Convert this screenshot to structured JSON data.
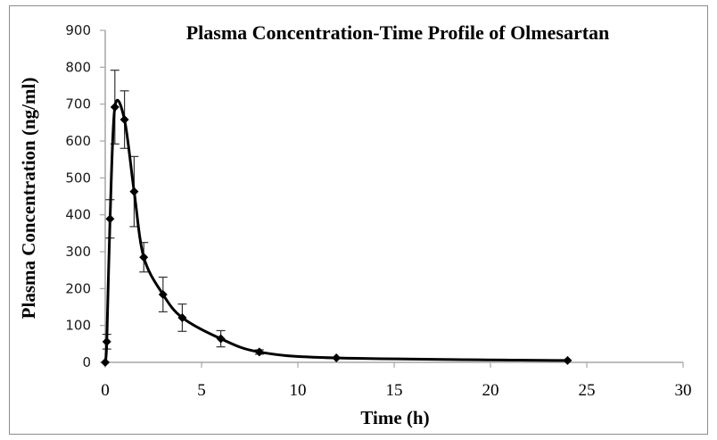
{
  "chart_data": {
    "type": "line",
    "title": "Plasma Concentration-Time Profile of Olmesartan",
    "xlabel": "Time (h)",
    "ylabel": "Plasma Concentration (ng/ml)",
    "xlim": [
      0,
      30
    ],
    "ylim": [
      0,
      900
    ],
    "xticks": [
      0,
      5,
      10,
      15,
      20,
      25,
      30
    ],
    "yticks": [
      0,
      100,
      200,
      300,
      400,
      500,
      600,
      700,
      800,
      900
    ],
    "grid": false,
    "legend": "none",
    "series": [
      {
        "name": "Olmesartan",
        "color": "#000000",
        "marker": "diamond",
        "smooth": true,
        "x": [
          0,
          0.08,
          0.25,
          0.5,
          1,
          1.5,
          2,
          3,
          4,
          6,
          8,
          12,
          24
        ],
        "y": [
          0,
          56,
          389,
          692,
          658,
          463,
          285,
          184,
          121,
          64,
          28,
          12,
          5
        ],
        "error": [
          0,
          20,
          52,
          100,
          78,
          95,
          40,
          47,
          37,
          22,
          6,
          0,
          0
        ]
      }
    ]
  }
}
